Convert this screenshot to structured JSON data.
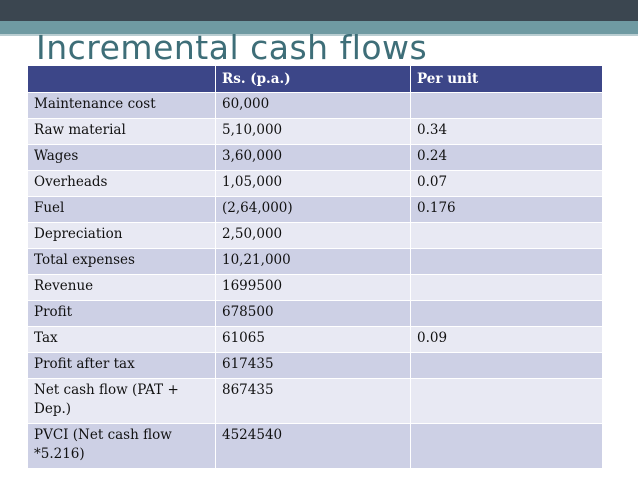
{
  "slide": {
    "title": "Incremental cash flows",
    "colors": {
      "header_bg": "#3c4688",
      "row_odd": "#cdd0e5",
      "row_even": "#e8e9f3",
      "title": "#3e6e78"
    }
  },
  "table": {
    "headers": [
      "",
      "Rs. (p.a.)",
      "Per unit"
    ],
    "rows": [
      [
        "Maintenance  cost",
        "60,000",
        ""
      ],
      [
        "Raw material",
        "5,10,000",
        "0.34"
      ],
      [
        "Wages",
        "3,60,000",
        "0.24"
      ],
      [
        "Overheads",
        "1,05,000",
        "0.07"
      ],
      [
        "Fuel",
        "(2,64,000)",
        "0.176"
      ],
      [
        "Depreciation",
        "2,50,000",
        ""
      ],
      [
        "Total expenses",
        "10,21,000",
        ""
      ],
      [
        "Revenue",
        "1699500",
        ""
      ],
      [
        "Profit",
        "678500",
        ""
      ],
      [
        "Tax",
        "61065",
        "0.09"
      ],
      [
        "Profit after tax",
        "617435",
        ""
      ],
      [
        "Net cash flow (PAT + Dep.)",
        "867435",
        ""
      ],
      [
        "PVCI (Net cash flow *5.216)",
        "4524540",
        ""
      ]
    ]
  }
}
